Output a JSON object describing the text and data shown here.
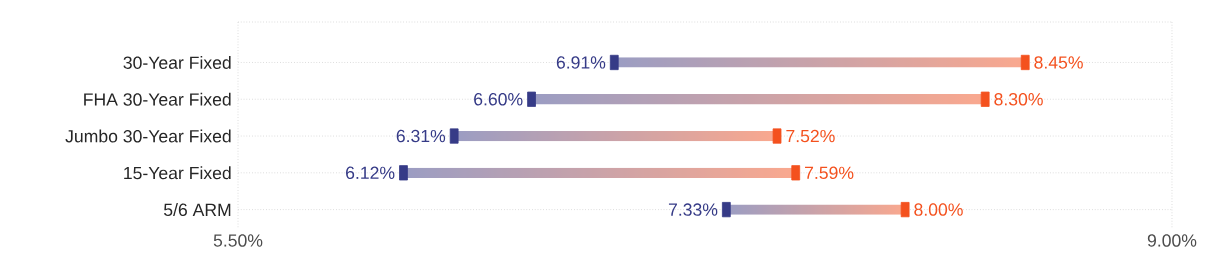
{
  "chart_data": {
    "type": "bar",
    "orientation": "horizontal",
    "categories": [
      "30-Year Fixed",
      "FHA 30-Year Fixed",
      "Jumbo 30-Year Fixed",
      "15-Year Fixed",
      "5/6 ARM"
    ],
    "xlim": [
      5.5,
      9.0
    ],
    "xticks": [
      {
        "value": 5.5,
        "label": "5.50%"
      },
      {
        "value": 9.0,
        "label": "9.00%"
      }
    ],
    "grid": true,
    "series": [
      {
        "base": [
          6.91,
          6.6,
          6.31,
          6.12,
          7.33
        ],
        "values": [
          1.54,
          1.7,
          1.21,
          1.47,
          0.67
        ]
      },
      {
        "type": "scatter",
        "color": "#363b87",
        "values": [
          6.91,
          6.6,
          6.31,
          6.12,
          7.33
        ],
        "value_labels": [
          "6.91%",
          "6.60%",
          "6.31%",
          "6.12%",
          "7.33%"
        ]
      },
      {
        "type": "scatter",
        "color": "#f4511e",
        "values": [
          8.45,
          8.3,
          7.52,
          7.59,
          8.0
        ],
        "value_labels": [
          "8.45%",
          "8.30%",
          "7.52%",
          "7.59%",
          "8.00%"
        ]
      }
    ]
  }
}
